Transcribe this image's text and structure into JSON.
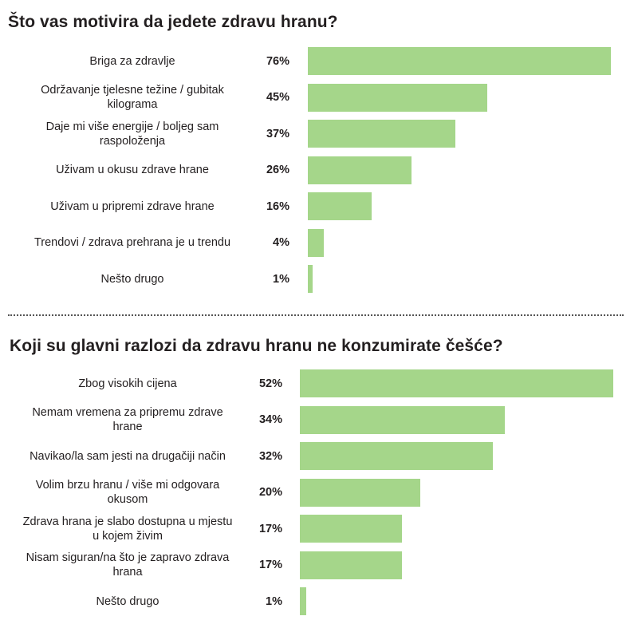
{
  "charts": [
    {
      "title": "Što vas motivira da jedete zdravu hranu?"
    },
    {
      "title": "Koji su glavni razlozi da zdravu hranu ne konzumirate češće?"
    }
  ],
  "chart_data": [
    {
      "type": "bar",
      "orientation": "horizontal",
      "title": "Što vas motivira da jedete zdravu hranu?",
      "categories": [
        "Briga za zdravlje",
        "Održavanje tjelesne težine / gubitak kilograma",
        "Daje mi više energije / boljeg sam raspoloženja",
        "Uživam u okusu zdrave hrane",
        "Uživam u pripremi zdrave hrane",
        "Trendovi / zdrava prehrana je u trendu",
        "Nešto drugo"
      ],
      "values": [
        76,
        45,
        37,
        26,
        16,
        4,
        1
      ],
      "value_labels": [
        "76%",
        "45%",
        "37%",
        "26%",
        "16%",
        "4%",
        "1%"
      ],
      "unit": "%",
      "xlim": [
        0,
        76
      ],
      "bar_color": "#a5d68a"
    },
    {
      "type": "bar",
      "orientation": "horizontal",
      "title": "Koji su glavni razlozi da zdravu hranu ne konzumirate češće?",
      "categories": [
        "Zbog visokih cijena",
        "Nemam vremena za pripremu zdrave hrane",
        "Navikao/la sam jesti na drugačiji način",
        "Volim brzu hranu / više mi odgovara okusom",
        "Zdrava hrana je slabo dostupna u mjestu u kojem živim",
        "Nisam siguran/na što je zapravo zdrava hrana",
        "Nešto drugo"
      ],
      "values": [
        52,
        34,
        32,
        20,
        17,
        17,
        1
      ],
      "value_labels": [
        "52%",
        "34%",
        "32%",
        "20%",
        "17%",
        "17%",
        "1%"
      ],
      "unit": "%",
      "xlim": [
        0,
        52
      ],
      "bar_color": "#a5d68a"
    }
  ]
}
